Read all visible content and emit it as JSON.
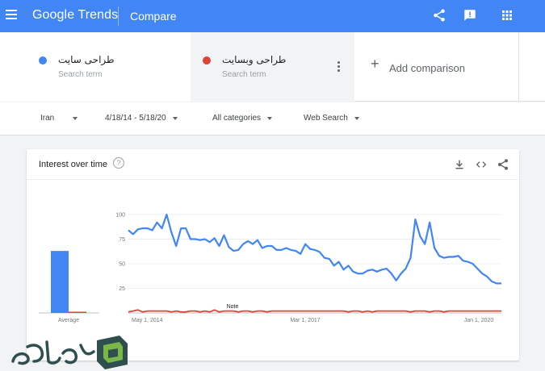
{
  "header": {
    "brand": "Google Trends",
    "page_title": "Compare",
    "icons": [
      "menu-icon",
      "share-icon",
      "feedback-icon",
      "apps-icon"
    ],
    "color": "#4285f4"
  },
  "terms": [
    {
      "name": "طراحی سایت",
      "subtitle": "Search term",
      "color": "#4285f4"
    },
    {
      "name": "طراحی وبسایت",
      "subtitle": "Search term",
      "color": "#db4437"
    }
  ],
  "add_comparison": {
    "label": "Add comparison"
  },
  "filters": {
    "region": "Iran",
    "date_range": "4/18/14 - 5/18/20",
    "category": "All categories",
    "search_type": "Web Search"
  },
  "card": {
    "title": "Interest over time",
    "icons": [
      "help-icon",
      "download-icon",
      "embed-icon",
      "share-icon"
    ]
  },
  "chart_data": {
    "type": "line",
    "x_ticks": [
      "May 1, 2014",
      "Mar 1, 2017",
      "Jan 1, 2020"
    ],
    "y_ticks": [
      "100",
      "75",
      "50",
      "25"
    ],
    "ylim": [
      0,
      100
    ],
    "grid": true,
    "annotation": "Note",
    "average": {
      "label": "Average",
      "values": [
        63,
        1
      ]
    },
    "series": [
      {
        "color": "#4285f4",
        "values": [
          84,
          80,
          85,
          86,
          86,
          84,
          92,
          86,
          100,
          82,
          68,
          86,
          86,
          75,
          75,
          74,
          75,
          72,
          76,
          68,
          79,
          67,
          63,
          64,
          70,
          73,
          70,
          74,
          66,
          68,
          68,
          64,
          64,
          66,
          64,
          63,
          60,
          70,
          65,
          64,
          62,
          56,
          55,
          48,
          52,
          44,
          48,
          42,
          40,
          40,
          43,
          44,
          42,
          44,
          45,
          40,
          33,
          40,
          45,
          56,
          95,
          78,
          70,
          92,
          66,
          58,
          56,
          57,
          57,
          58,
          53,
          52,
          50,
          45,
          40,
          37,
          32,
          30,
          30
        ]
      },
      {
        "color": "#db4437",
        "values": [
          1,
          2,
          3,
          1,
          2,
          2,
          2,
          2,
          2,
          1,
          2,
          1,
          1,
          2,
          2,
          1,
          2,
          1,
          3,
          1,
          2,
          2,
          2,
          1,
          2,
          2,
          1,
          2,
          2,
          1,
          2,
          2,
          2,
          2,
          2,
          2,
          2,
          2,
          2,
          2,
          2,
          2,
          2,
          2,
          2,
          2,
          1,
          2,
          2,
          1,
          2,
          1,
          2,
          2,
          2,
          2,
          2,
          2,
          2,
          1,
          2,
          2,
          2,
          1,
          2,
          2,
          1,
          2,
          2,
          2,
          2,
          2,
          2,
          2,
          2,
          2,
          2,
          2,
          2
        ]
      }
    ]
  },
  "watermark": {
    "text": "سیک طراح",
    "colors": [
      "#2f4f4f",
      "#7ab648"
    ]
  }
}
